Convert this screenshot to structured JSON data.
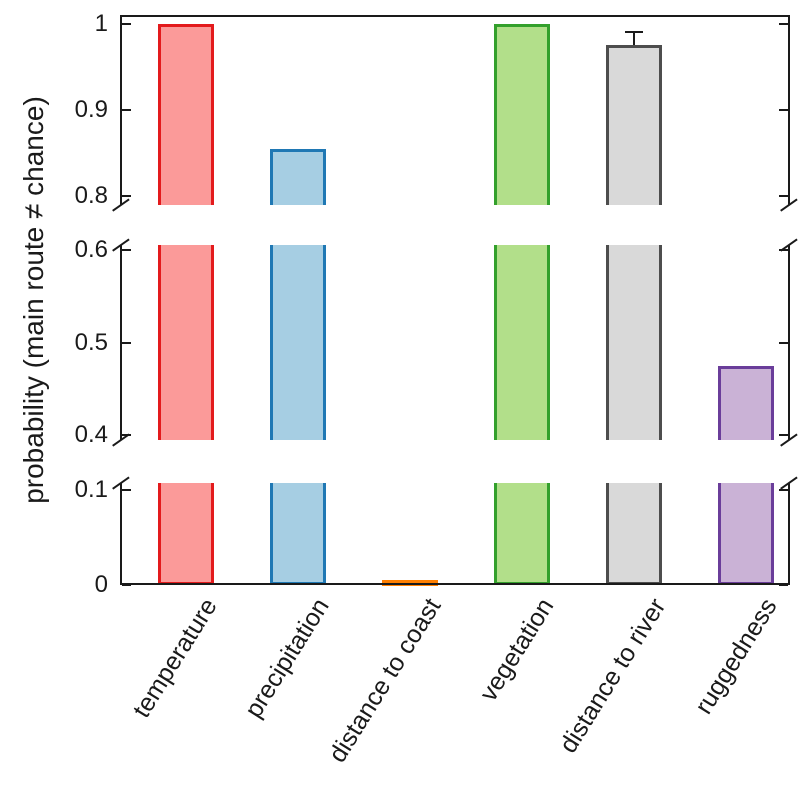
{
  "chart_data": {
    "type": "bar",
    "title": "",
    "xlabel": "",
    "ylabel": "probability (main route ≠ chance)",
    "categories": [
      "temperature",
      "precipitation",
      "distance to coast",
      "vegetation",
      "distance to river",
      "ruggedness"
    ],
    "values": [
      1.0,
      0.855,
      0.005,
      1.0,
      0.975,
      0.475
    ],
    "errors": [
      0,
      0,
      0,
      0,
      0.015,
      0
    ],
    "bar_colors": [
      {
        "fill": "#fb9a99",
        "edge": "#e31a1c"
      },
      {
        "fill": "#a6cee3",
        "edge": "#1f78b4"
      },
      {
        "fill": "#fdbf6f",
        "edge": "#ff7f00"
      },
      {
        "fill": "#b2df8a",
        "edge": "#33a02c"
      },
      {
        "fill": "#d9d9d9",
        "edge": "#4d4d4d"
      },
      {
        "fill": "#cab2d6",
        "edge": "#6a3d9a"
      }
    ],
    "axis_color": "#1a1a1a",
    "grid": "off",
    "legend": null,
    "broken_y_axis": {
      "note": "y-axis broken into three segments, listed top to bottom",
      "segments": [
        {
          "min": 0.79,
          "max": 1.01,
          "ticks": [
            0.8,
            0.9,
            1
          ],
          "tick_labels": [
            "0.8",
            "0.9",
            "1"
          ]
        },
        {
          "min": 0.395,
          "max": 0.605,
          "ticks": [
            0.4,
            0.5,
            0.6
          ],
          "tick_labels": [
            "0.4",
            "0.5",
            "0.6"
          ]
        },
        {
          "min": 0,
          "max": 0.107,
          "ticks": [
            0,
            0.1
          ],
          "tick_labels": [
            "0",
            "0.1"
          ]
        }
      ]
    }
  }
}
